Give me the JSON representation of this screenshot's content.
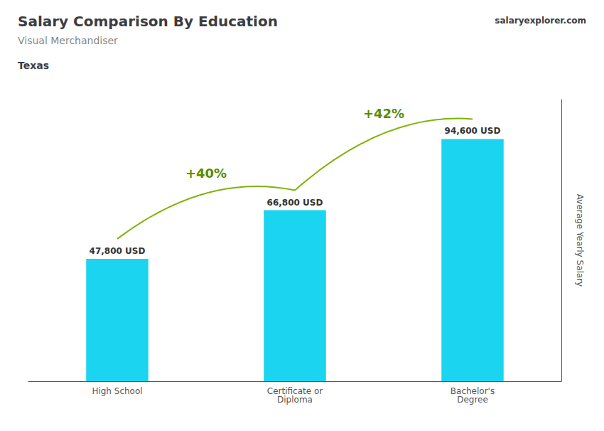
{
  "chart_data": {
    "type": "bar",
    "title": "Salary Comparison By Education",
    "subtitle": "Visual Merchandiser",
    "location": "Texas",
    "watermark": "salaryexplorer.com",
    "ylabel": "Average Yearly Salary",
    "categories": [
      "High School",
      "Certificate or\nDiploma",
      "Bachelor's\nDegree"
    ],
    "values": [
      47800,
      66800,
      94600
    ],
    "value_labels": [
      "47,800 USD",
      "66,800 USD",
      "94,600 USD"
    ],
    "data_labels": true,
    "annotations": [
      "+40%",
      "+42%"
    ],
    "color": "#1ad4f0",
    "ylim": [
      0,
      110000
    ],
    "grid": false,
    "tick_labels": "x"
  }
}
